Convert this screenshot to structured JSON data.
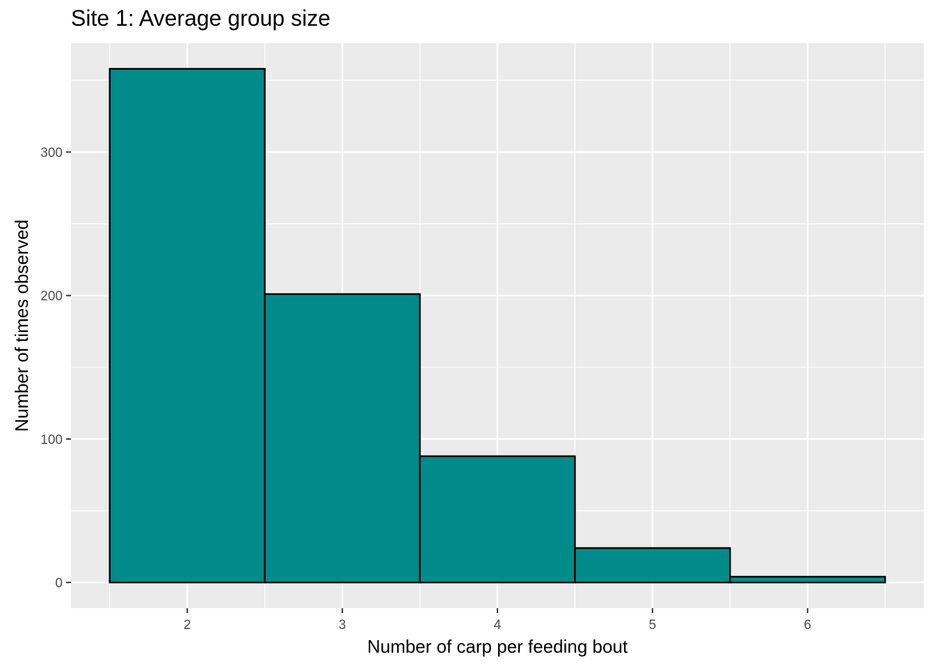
{
  "chart_data": {
    "type": "bar",
    "title": "Site 1: Average group size",
    "xlabel": "Number of carp per feeding bout",
    "ylabel": "Number of times observed",
    "categories": [
      "2",
      "3",
      "4",
      "5",
      "6"
    ],
    "values": [
      358,
      201,
      88,
      24,
      4
    ],
    "x_ticks": [
      2,
      3,
      4,
      5,
      6
    ],
    "y_ticks": [
      0,
      100,
      200,
      300
    ],
    "xlim": [
      1.5,
      6.5
    ],
    "ylim": [
      0,
      358
    ],
    "grid": true,
    "legend": "none",
    "colors": {
      "bar_fill": "#008B8B",
      "bar_stroke": "#000000",
      "panel_bg": "#EBEBEB",
      "grid": "#FFFFFF"
    }
  }
}
